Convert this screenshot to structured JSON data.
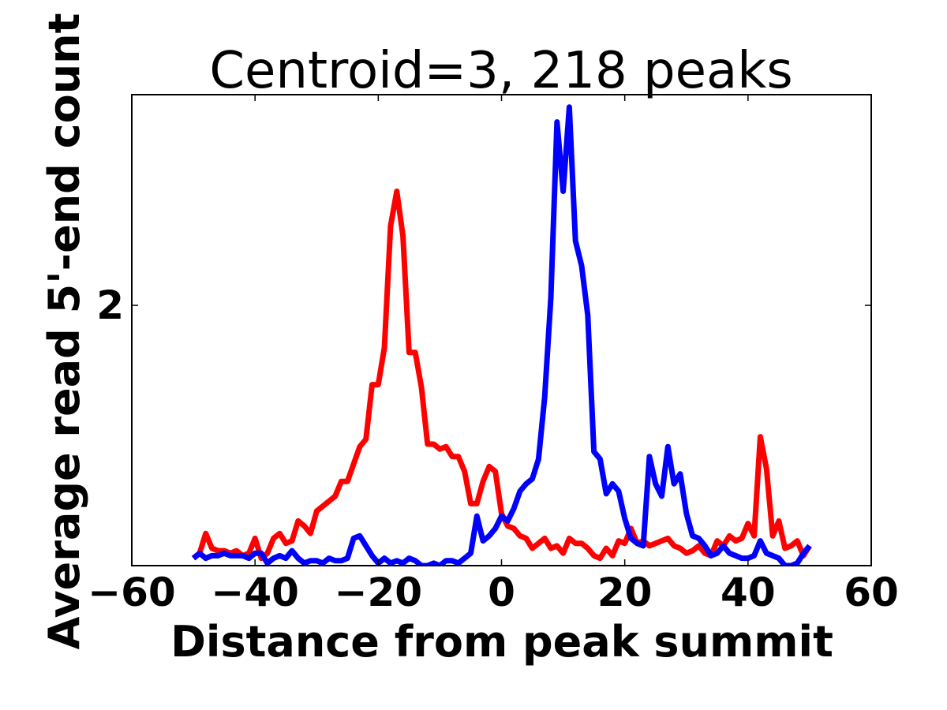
{
  "chart_data": {
    "type": "line",
    "title": "Centroid=3, 218 peaks",
    "xlabel": "Distance from peak summit",
    "ylabel": "Average read 5'-end count",
    "xlim": [
      -60,
      60
    ],
    "ylim": [
      0.95,
      2.85
    ],
    "xticks": [
      -60,
      -40,
      -20,
      0,
      20,
      40,
      60
    ],
    "xtick_labels": [
      "−60",
      "−40",
      "−20",
      "0",
      "20",
      "40",
      "60"
    ],
    "yticks": [
      2
    ],
    "ytick_labels": [
      "2"
    ],
    "grid": false,
    "series": [
      {
        "name": "red",
        "color": "#ff0000",
        "x": [
          -50,
          -49,
          -48,
          -47,
          -46,
          -45,
          -44,
          -43,
          -42,
          -41,
          -40,
          -39,
          -38,
          -37,
          -36,
          -35,
          -34,
          -33,
          -32,
          -31,
          -30,
          -29,
          -28,
          -27,
          -26,
          -25,
          -24,
          -23,
          -22,
          -21,
          -20,
          -19,
          -18,
          -17,
          -16,
          -15,
          -14,
          -13,
          -12,
          -11,
          -10,
          -9,
          -8,
          -7,
          -6,
          -5,
          -4,
          -3,
          -2,
          -1,
          0,
          1,
          2,
          3,
          4,
          5,
          6,
          7,
          8,
          9,
          10,
          11,
          12,
          13,
          14,
          15,
          16,
          17,
          18,
          19,
          20,
          21,
          22,
          23,
          24,
          25,
          26,
          27,
          28,
          29,
          30,
          31,
          32,
          33,
          34,
          35,
          36,
          37,
          38,
          39,
          40,
          41,
          42,
          43,
          44,
          45,
          46,
          47,
          48,
          49,
          50
        ],
        "y": [
          0.98,
          1.0,
          1.08,
          1.02,
          1.01,
          1.01,
          1.0,
          1.01,
          0.99,
          1.0,
          1.06,
          0.98,
          1.0,
          1.06,
          1.08,
          1.04,
          1.05,
          1.13,
          1.11,
          1.08,
          1.17,
          1.19,
          1.21,
          1.23,
          1.29,
          1.29,
          1.36,
          1.43,
          1.46,
          1.68,
          1.68,
          1.83,
          2.32,
          2.46,
          2.28,
          1.81,
          1.81,
          1.67,
          1.44,
          1.44,
          1.42,
          1.43,
          1.39,
          1.39,
          1.33,
          1.2,
          1.2,
          1.29,
          1.35,
          1.33,
          1.16,
          1.11,
          1.1,
          1.07,
          1.06,
          1.02,
          1.04,
          1.06,
          1.02,
          1.03,
          1.0,
          1.06,
          1.04,
          1.04,
          1.02,
          0.99,
          0.98,
          1.02,
          0.99,
          1.05,
          1.04,
          1.1,
          1.04,
          1.05,
          1.03,
          1.04,
          1.05,
          1.06,
          1.03,
          1.02,
          1.0,
          1.01,
          1.03,
          1.0,
          0.99,
          1.05,
          1.03,
          1.07,
          1.05,
          1.06,
          1.12,
          1.07,
          1.47,
          1.34,
          1.07,
          1.13,
          1.02,
          1.03,
          1.05,
          0.99,
          1.03
        ]
      },
      {
        "name": "blue",
        "color": "#0000ff",
        "x": [
          -50,
          -49,
          -48,
          -47,
          -46,
          -45,
          -44,
          -43,
          -42,
          -41,
          -40,
          -39,
          -38,
          -37,
          -36,
          -35,
          -34,
          -33,
          -32,
          -31,
          -30,
          -29,
          -28,
          -27,
          -26,
          -25,
          -24,
          -23,
          -22,
          -21,
          -20,
          -19,
          -18,
          -17,
          -16,
          -15,
          -14,
          -13,
          -12,
          -11,
          -10,
          -9,
          -8,
          -7,
          -6,
          -5,
          -4,
          -3,
          -2,
          -1,
          0,
          1,
          2,
          3,
          4,
          5,
          6,
          7,
          8,
          9,
          10,
          11,
          12,
          13,
          14,
          15,
          16,
          17,
          18,
          19,
          20,
          21,
          22,
          23,
          24,
          25,
          26,
          27,
          28,
          29,
          30,
          31,
          32,
          33,
          34,
          35,
          36,
          37,
          38,
          39,
          40,
          41,
          42,
          43,
          44,
          45,
          46,
          47,
          48,
          49,
          50
        ],
        "y": [
          0.98,
          1.0,
          0.98,
          0.99,
          0.99,
          1.0,
          0.99,
          0.99,
          0.99,
          0.98,
          1.0,
          1.0,
          0.96,
          0.98,
          0.99,
          0.98,
          1.01,
          0.98,
          0.96,
          0.97,
          0.97,
          0.96,
          0.98,
          0.97,
          0.97,
          0.98,
          1.06,
          1.07,
          1.03,
          0.99,
          0.96,
          0.98,
          0.96,
          0.97,
          0.96,
          0.98,
          0.97,
          0.95,
          0.95,
          0.96,
          0.95,
          0.97,
          0.97,
          0.96,
          0.98,
          1.0,
          1.15,
          1.05,
          1.07,
          1.1,
          1.15,
          1.13,
          1.18,
          1.25,
          1.28,
          1.3,
          1.38,
          1.63,
          2.03,
          2.74,
          2.46,
          2.8,
          2.26,
          2.16,
          1.96,
          1.41,
          1.38,
          1.24,
          1.28,
          1.25,
          1.14,
          1.06,
          1.04,
          1.03,
          1.39,
          1.28,
          1.23,
          1.43,
          1.28,
          1.32,
          1.16,
          1.07,
          1.06,
          1.03,
          0.99,
          1.0,
          1.03,
          1.0,
          0.99,
          0.98,
          0.98,
          0.99,
          1.05,
          1.0,
          0.99,
          0.98,
          0.95,
          0.95,
          0.96,
          1.0,
          1.03
        ]
      }
    ]
  }
}
